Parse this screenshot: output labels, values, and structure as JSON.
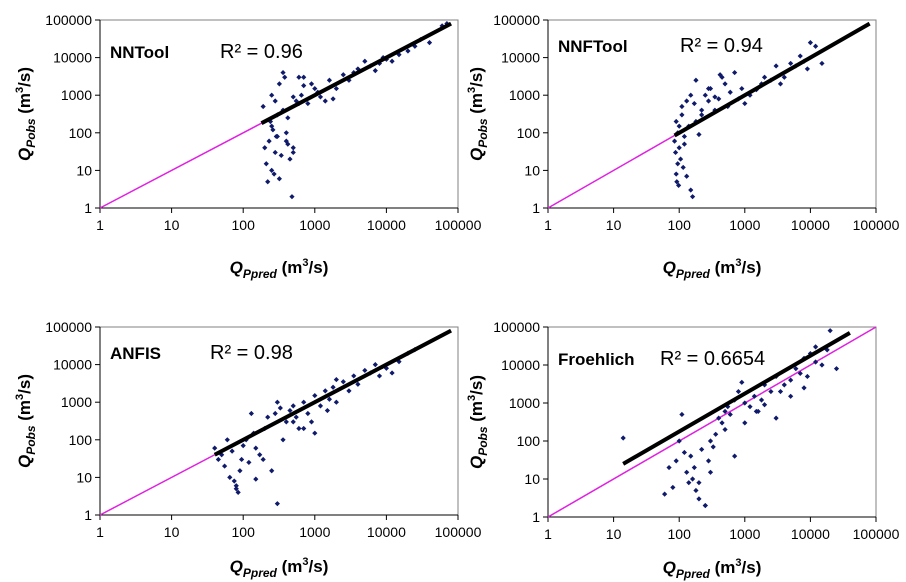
{
  "figure": {
    "background": "#ffffff",
    "point_color": "#0f1a6b",
    "fit_color": "#000000",
    "identity_color": "#e020e0"
  },
  "chart_data": [
    {
      "type": "scatter",
      "title": "NNTool",
      "annotation": "R² = 0.96",
      "xlabel": {
        "main": "Q",
        "sub": "Ppred",
        "unit_pre": " (m",
        "unit_sup": "3",
        "unit_post": "/s)"
      },
      "ylabel": {
        "main": "Q",
        "sub": "Pobs",
        "unit_pre": " (m",
        "unit_sup": "3",
        "unit_post": "/s)"
      },
      "x_scale": "log",
      "y_scale": "log",
      "xlim": [
        1,
        100000
      ],
      "ylim": [
        1,
        100000
      ],
      "x_ticks": [
        "1",
        "10",
        "100",
        "1000",
        "10000",
        "100000"
      ],
      "y_ticks": [
        "1",
        "10",
        "100",
        "1000",
        "10000",
        "100000"
      ],
      "grid": false,
      "legend": "none",
      "identity_line": [
        [
          1,
          1
        ],
        [
          200,
          200
        ]
      ],
      "fit_line": [
        [
          180,
          180
        ],
        [
          80000,
          80000
        ]
      ],
      "x": [
        190,
        200,
        210,
        220,
        230,
        240,
        250,
        260,
        270,
        280,
        290,
        300,
        320,
        340,
        360,
        380,
        400,
        420,
        450,
        480,
        500,
        550,
        600,
        650,
        700,
        800,
        900,
        1000,
        1100,
        1200,
        1400,
        1600,
        1800,
        2000,
        2500,
        3000,
        3500,
        4000,
        5000,
        6000,
        7000,
        8000,
        9000,
        10000,
        12000,
        15000,
        20000,
        25000,
        30000,
        40000,
        60000,
        70000,
        250,
        280,
        320,
        360,
        420,
        500,
        600,
        250,
        300,
        400,
        500,
        700
      ],
      "y": [
        500,
        40,
        15,
        5,
        60,
        200,
        10,
        120,
        8,
        30,
        80,
        300,
        6,
        25,
        400,
        3000,
        100,
        50,
        20,
        2,
        900,
        700,
        600,
        1000,
        1800,
        600,
        2000,
        1500,
        1200,
        900,
        700,
        2500,
        800,
        1500,
        3500,
        2500,
        4000,
        5000,
        8000,
        6000,
        4500,
        7000,
        10000,
        9000,
        8000,
        12000,
        15000,
        20000,
        30000,
        25000,
        70000,
        80000,
        1000,
        700,
        2000,
        4000,
        250,
        40,
        3000,
        150,
        80,
        60,
        30,
        3000
      ]
    },
    {
      "type": "scatter",
      "title": "NNFTool",
      "annotation": "R² = 0.94",
      "xlabel": {
        "main": "Q",
        "sub": "Ppred",
        "unit_pre": " (m",
        "unit_sup": "3",
        "unit_post": "/s)"
      },
      "ylabel": {
        "main": "Q",
        "sub": "Pobs",
        "unit_pre": " (m",
        "unit_sup": "3",
        "unit_post": "/s)"
      },
      "x_scale": "log",
      "y_scale": "log",
      "xlim": [
        1,
        100000
      ],
      "ylim": [
        1,
        100000
      ],
      "x_ticks": [
        "1",
        "10",
        "100",
        "1000",
        "10000",
        "100000"
      ],
      "y_ticks": [
        "1",
        "10",
        "100",
        "1000",
        "10000",
        "100000"
      ],
      "grid": false,
      "legend": "none",
      "identity_line": [
        [
          1,
          1
        ],
        [
          90,
          90
        ]
      ],
      "fit_line": [
        [
          85,
          85
        ],
        [
          80000,
          80000
        ]
      ],
      "x": [
        85,
        88,
        90,
        92,
        95,
        98,
        100,
        105,
        110,
        115,
        120,
        130,
        140,
        150,
        160,
        170,
        180,
        200,
        220,
        250,
        280,
        300,
        350,
        400,
        450,
        500,
        550,
        600,
        700,
        800,
        900,
        1000,
        1200,
        1500,
        1800,
        2000,
        2500,
        3000,
        3500,
        4000,
        5000,
        6000,
        7000,
        8000,
        9000,
        10000,
        12000,
        15000,
        90,
        100,
        110,
        130,
        150,
        180,
        220,
        280,
        350,
        420,
        95,
        120
      ],
      "y": [
        60,
        30,
        8,
        5,
        100,
        4,
        40,
        20,
        500,
        12,
        80,
        7,
        150,
        3,
        2,
        600,
        200,
        90,
        300,
        1000,
        700,
        1500,
        400,
        800,
        3000,
        2000,
        500,
        1200,
        4000,
        800,
        1500,
        600,
        1000,
        1400,
        2000,
        3000,
        2500,
        6000,
        2000,
        3000,
        7000,
        6000,
        11000,
        8000,
        5000,
        25000,
        20000,
        7000,
        200,
        150,
        300,
        700,
        1000,
        2500,
        400,
        1500,
        900,
        3500,
        15,
        50
      ]
    },
    {
      "type": "scatter",
      "title": "ANFIS",
      "annotation": "R² = 0.98",
      "xlabel": {
        "main": "Q",
        "sub": "Ppred",
        "unit_pre": " (m",
        "unit_sup": "3",
        "unit_post": "/s)"
      },
      "ylabel": {
        "main": "Q",
        "sub": "Pobs",
        "unit_pre": " (m",
        "unit_sup": "3",
        "unit_post": "/s)"
      },
      "x_scale": "log",
      "y_scale": "log",
      "xlim": [
        1,
        100000
      ],
      "ylim": [
        1,
        100000
      ],
      "x_ticks": [
        "1",
        "10",
        "100",
        "1000",
        "10000",
        "100000"
      ],
      "y_ticks": [
        "1",
        "10",
        "100",
        "1000",
        "10000",
        "100000"
      ],
      "grid": false,
      "legend": "none",
      "identity_line": [
        [
          1,
          1
        ],
        [
          40,
          40
        ]
      ],
      "fit_line": [
        [
          40,
          40
        ],
        [
          80000,
          80000
        ]
      ],
      "x": [
        40,
        45,
        50,
        55,
        60,
        65,
        70,
        75,
        80,
        85,
        90,
        95,
        100,
        110,
        120,
        130,
        140,
        150,
        170,
        190,
        200,
        220,
        250,
        280,
        300,
        330,
        360,
        400,
        450,
        500,
        550,
        600,
        700,
        800,
        900,
        1000,
        1200,
        1400,
        1600,
        1800,
        2000,
        2500,
        3000,
        3500,
        4000,
        5000,
        6000,
        7000,
        8000,
        10000,
        12000,
        15000,
        20000,
        25000,
        300,
        500,
        700,
        1000,
        1500,
        2000,
        80,
        150
      ],
      "y": [
        60,
        30,
        40,
        20,
        100,
        10,
        50,
        8,
        6,
        4,
        15,
        30,
        70,
        100,
        25,
        500,
        150,
        60,
        40,
        30,
        200,
        400,
        15,
        500,
        2,
        700,
        100,
        300,
        600,
        800,
        400,
        200,
        1000,
        500,
        300,
        1500,
        800,
        2000,
        1200,
        2500,
        1000,
        3500,
        2000,
        5000,
        3000,
        7000,
        6000,
        10000,
        5000,
        8000,
        6000,
        12000,
        20000,
        25000,
        1000,
        300,
        200,
        150,
        600,
        4000,
        5,
        9
      ]
    },
    {
      "type": "scatter",
      "title": "Froehlich",
      "annotation": "R² = 0.6654",
      "xlabel": {
        "main": "Q",
        "sub": "Ppred",
        "unit_pre": " (m",
        "unit_sup": "3",
        "unit_post": "/s)"
      },
      "ylabel": {
        "main": "Q",
        "sub": "Pobs",
        "unit_pre": " (m",
        "unit_sup": "3",
        "unit_post": "/s)"
      },
      "x_scale": "log",
      "y_scale": "log",
      "xlim": [
        1,
        100000
      ],
      "ylim": [
        1,
        100000
      ],
      "x_ticks": [
        "1",
        "10",
        "100",
        "1000",
        "10000",
        "100000"
      ],
      "y_ticks": [
        "1",
        "10",
        "100",
        "1000",
        "10000",
        "100000"
      ],
      "grid": false,
      "legend": "none",
      "identity_line": [
        [
          1,
          1
        ],
        [
          100000,
          100000
        ]
      ],
      "fit_line": [
        [
          14,
          25
        ],
        [
          40000,
          70000
        ]
      ],
      "x": [
        14,
        60,
        70,
        80,
        90,
        100,
        110,
        120,
        130,
        140,
        150,
        160,
        170,
        180,
        200,
        220,
        250,
        280,
        300,
        330,
        360,
        400,
        450,
        500,
        550,
        600,
        700,
        800,
        900,
        1000,
        1200,
        1400,
        1600,
        1800,
        2000,
        2500,
        3000,
        3500,
        4000,
        5000,
        6000,
        7000,
        8000,
        9000,
        10000,
        12000,
        15000,
        18000,
        20000,
        25000,
        300,
        500,
        700,
        1000,
        1500,
        2000,
        3000,
        5000,
        8000,
        12000,
        200,
        250
      ],
      "y": [
        120,
        4,
        20,
        6,
        30,
        100,
        500,
        50,
        15,
        8,
        40,
        10,
        20,
        5,
        3,
        60,
        2,
        30,
        100,
        70,
        150,
        400,
        300,
        600,
        800,
        500,
        1200,
        2000,
        3500,
        1000,
        800,
        1500,
        600,
        1200,
        3000,
        2000,
        5000,
        2000,
        3000,
        4000,
        8000,
        6000,
        15000,
        5000,
        20000,
        30000,
        10000,
        25000,
        80000,
        8000,
        15,
        200,
        40,
        300,
        600,
        900,
        400,
        1500,
        2500,
        12000,
        8,
        2
      ]
    }
  ]
}
